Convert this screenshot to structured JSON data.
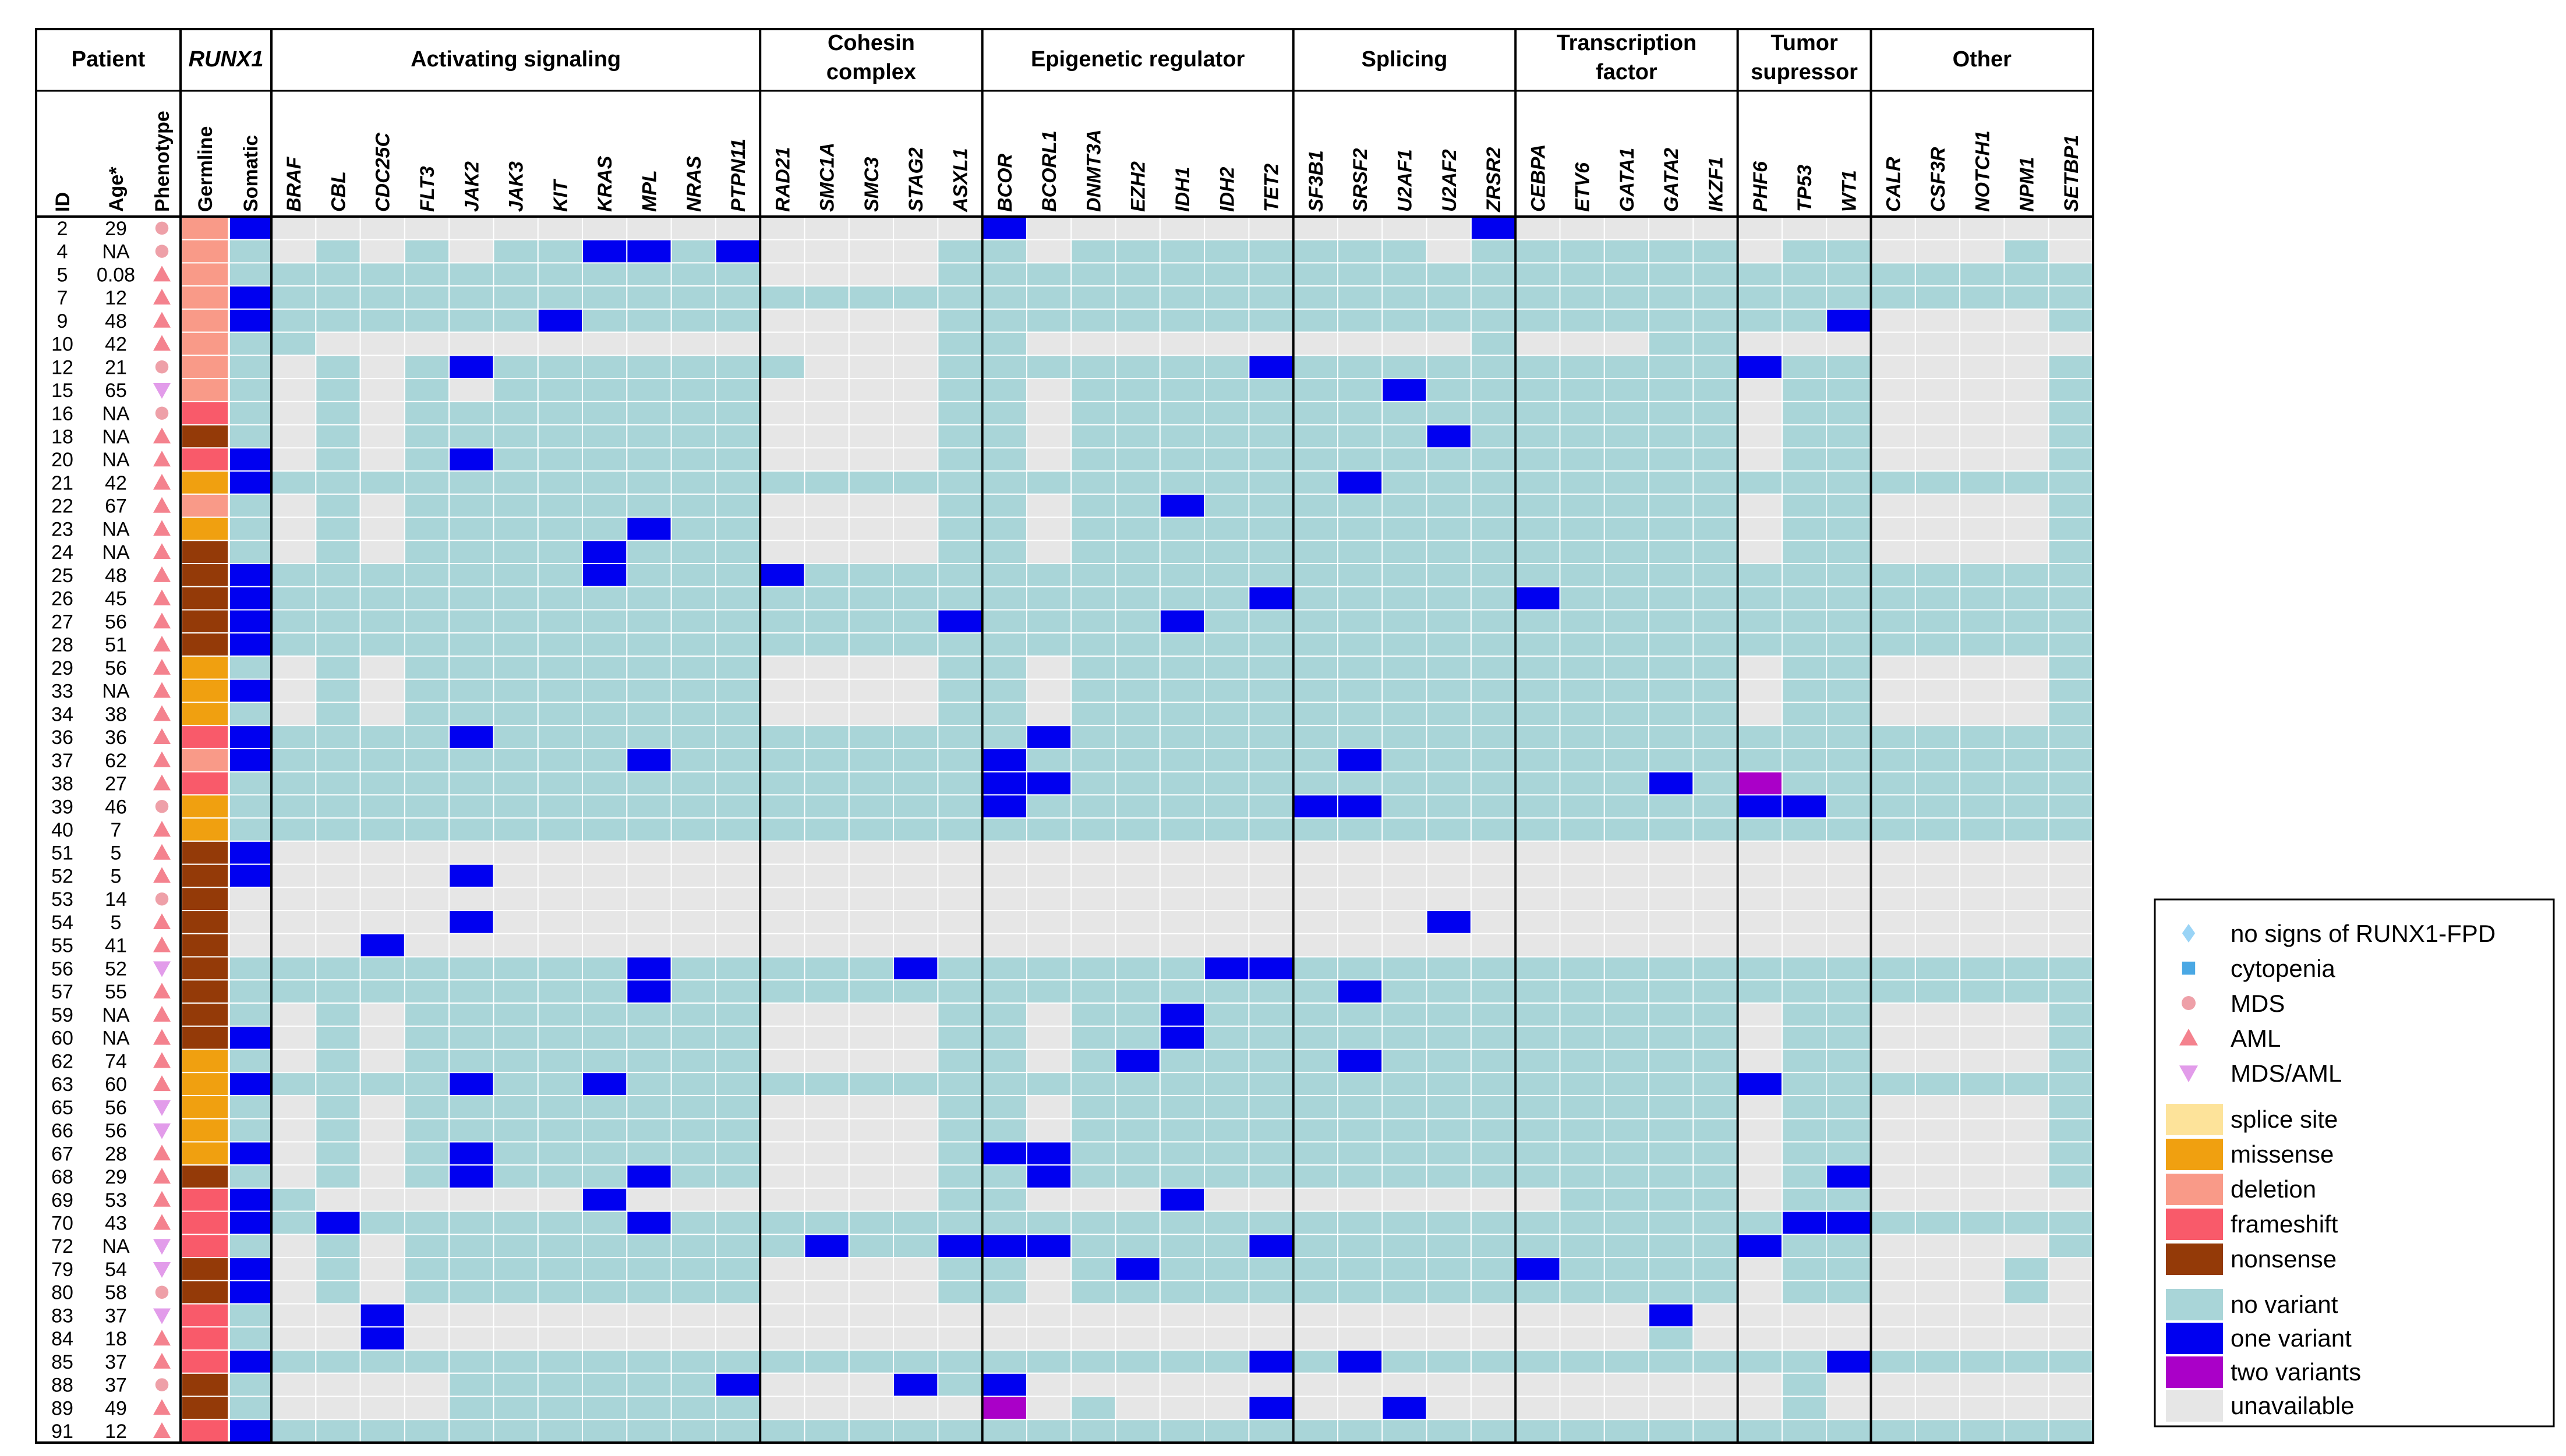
{
  "chart_data": {
    "type": "heatmap",
    "groups": [
      {
        "label": "Patient",
        "columns": [
          "ID",
          "Age*",
          "Phenotype"
        ]
      },
      {
        "label": "RUNX1",
        "italic": true,
        "columns": [
          "Germline",
          "Somatic"
        ]
      },
      {
        "label": "Activating signaling",
        "columns": [
          "BRAF",
          "CBL",
          "CDC25C",
          "FLT3",
          "JAK2",
          "JAK3",
          "KIT",
          "KRAS",
          "MPL",
          "NRAS",
          "PTPN11"
        ]
      },
      {
        "label": "Cohesin complex",
        "columns": [
          "RAD21",
          "SMC1A",
          "SMC3",
          "STAG2",
          "ASXL1"
        ]
      },
      {
        "label": "Epigenetic regulator",
        "columns": [
          "BCOR",
          "BCORL1",
          "DNMT3A",
          "EZH2",
          "IDH1",
          "IDH2",
          "TET2"
        ]
      },
      {
        "label": "Splicing",
        "columns": [
          "SF3B1",
          "SRSF2",
          "U2AF1",
          "U2AF2",
          "ZRSR2"
        ]
      },
      {
        "label": "Transcription factor",
        "columns": [
          "CEBPA",
          "ETV6",
          "GATA1",
          "GATA2",
          "IKZF1"
        ]
      },
      {
        "label": "Tumor supressor",
        "columns": [
          "PHF6",
          "TP53",
          "WT1"
        ]
      },
      {
        "label": "Other",
        "columns": [
          "CALR",
          "CSF3R",
          "NOTCH1",
          "NPM1",
          "SETBP1"
        ]
      }
    ],
    "value_legend": {
      "u": "unavailable",
      "n": "no variant",
      "o": "one variant",
      "t": "two variants"
    },
    "germline_legend": {
      "S": "splice site",
      "M": "missense",
      "D": "deletion",
      "F": "frameshift",
      "N": "nonsense"
    },
    "phenotype_legend": {
      "D": "no signs of RUNX1-FPD",
      "C": "cytopenia",
      "M": "MDS",
      "A": "AML",
      "X": "MDS/AML"
    },
    "rows": [
      {
        "id": "2",
        "age": "29",
        "ph": "M",
        "g": "D",
        "s": "o",
        "genes": "uuuuuuuuuuu|uuuuu|ouuuuuu|uuuuo|uuuuu|uuu|uuuuu"
      },
      {
        "id": "4",
        "age": "NA",
        "ph": "M",
        "g": "D",
        "s": "n",
        "genes": "unununnoono|uuuun|nunnnnn|nnnun|nnnnn|unn|uuunu"
      },
      {
        "id": "5",
        "age": "0.08",
        "ph": "A",
        "g": "D",
        "s": "n",
        "genes": "nnnnnnnnnnn|uuuun|nnnnnnn|nnnnn|nnnnn|nnn|nnnnn"
      },
      {
        "id": "7",
        "age": "12",
        "ph": "A",
        "g": "D",
        "s": "o",
        "genes": "nnnnnnnnnnn|nnnnn|nnnnnnn|nnnnn|nnnnn|nnn|nnnnn"
      },
      {
        "id": "9",
        "age": "48",
        "ph": "A",
        "g": "D",
        "s": "o",
        "genes": "nnnnnnonnnn|uuuun|nnnnnnn|nnnnn|nnnnn|nno|uuuun"
      },
      {
        "id": "10",
        "age": "42",
        "ph": "A",
        "g": "D",
        "s": "n",
        "genes": "nuuuuuuuuuu|uuuun|nuuuuuu|uuuun|uuunn|uuu|uuuuu"
      },
      {
        "id": "12",
        "age": "21",
        "ph": "M",
        "g": "D",
        "s": "n",
        "genes": "ununonnnnnn|nuuun|nnnnnno|nnnnn|nnnnn|onn|uuuun"
      },
      {
        "id": "15",
        "age": "65",
        "ph": "X",
        "g": "D",
        "s": "n",
        "genes": "unununnnnnn|uuuun|nunnnnn|nnonn|nnnnn|unn|uuuun"
      },
      {
        "id": "16",
        "age": "NA",
        "ph": "M",
        "g": "F",
        "s": "n",
        "genes": "ununnnnnnnn|uuuun|nunnnnn|nnnnn|nnnnn|unn|uuuun"
      },
      {
        "id": "18",
        "age": "NA",
        "ph": "A",
        "g": "N",
        "s": "n",
        "genes": "ununnnnnnnn|uuuun|nunnnnn|nnnon|nnnnn|unn|uuuun"
      },
      {
        "id": "20",
        "age": "NA",
        "ph": "A",
        "g": "F",
        "s": "o",
        "genes": "ununonnnnnn|uuuun|nunnnnn|nnnnn|nnnnn|unn|uuuun"
      },
      {
        "id": "21",
        "age": "42",
        "ph": "A",
        "g": "M",
        "s": "o",
        "genes": "nnnnnnnnnnn|nnnnn|nnnnnnn|nonnn|nnnnn|nnn|nnnnn"
      },
      {
        "id": "22",
        "age": "67",
        "ph": "A",
        "g": "D",
        "s": "n",
        "genes": "ununnnnnnnn|uuuun|nunnonn|nnnnn|nnnnn|unn|uuuun"
      },
      {
        "id": "23",
        "age": "NA",
        "ph": "A",
        "g": "M",
        "s": "n",
        "genes": "ununnnnnonn|uuuun|nunnnnn|nnnnn|nnnnn|unn|uuuun"
      },
      {
        "id": "24",
        "age": "NA",
        "ph": "A",
        "g": "N",
        "s": "n",
        "genes": "ununnnnonnn|uuuun|nunnnnn|nnnnn|nnnnn|unn|uuuun"
      },
      {
        "id": "25",
        "age": "48",
        "ph": "A",
        "g": "N",
        "s": "o",
        "genes": "nnnnnnnonnn|onnnn|nnnnnnn|nnnnn|nnnnn|nnn|nnnnn"
      },
      {
        "id": "26",
        "age": "45",
        "ph": "A",
        "g": "N",
        "s": "o",
        "genes": "nnnnnnnnnnn|nnnnn|nnnnnno|nnnnn|onnnn|nnn|nnnnn"
      },
      {
        "id": "27",
        "age": "56",
        "ph": "A",
        "g": "N",
        "s": "o",
        "genes": "nnnnnnnnnnn|nnnno|nnnnonn|nnnnn|nnnnn|nnn|nnnnn"
      },
      {
        "id": "28",
        "age": "51",
        "ph": "A",
        "g": "N",
        "s": "o",
        "genes": "nnnnnnnnnnn|nnnnn|nnnnnnn|nnnnn|nnnnn|nnn|nnnnn"
      },
      {
        "id": "29",
        "age": "56",
        "ph": "A",
        "g": "M",
        "s": "n",
        "genes": "ununnnnnnnn|uuuun|nunnnnn|nnnnn|nnnnn|unn|uuuun"
      },
      {
        "id": "33",
        "age": "NA",
        "ph": "A",
        "g": "M",
        "s": "o",
        "genes": "ununnnnnnnn|uuuun|nunnnnn|nnnnn|nnnnn|unn|uuuun"
      },
      {
        "id": "34",
        "age": "38",
        "ph": "A",
        "g": "M",
        "s": "n",
        "genes": "ununnnnnnnn|uuuun|nunnnnn|nnnnn|nnnnn|unn|uuuun"
      },
      {
        "id": "36",
        "age": "36",
        "ph": "A",
        "g": "F",
        "s": "o",
        "genes": "nnnnonnnnnn|nnnnn|nonnnnn|nnnnn|nnnnn|nnn|nnnnn"
      },
      {
        "id": "37",
        "age": "62",
        "ph": "A",
        "g": "D",
        "s": "o",
        "genes": "nnnnnnnnonn|nnnnn|onnnnnn|nonnn|nnnnn|nnn|nnnnn"
      },
      {
        "id": "38",
        "age": "27",
        "ph": "A",
        "g": "F",
        "s": "n",
        "genes": "nnnnnnnnnnn|nnnnn|oonnnnn|nnnnn|nnnon|tnn|nnnnn"
      },
      {
        "id": "39",
        "age": "46",
        "ph": "M",
        "g": "M",
        "s": "n",
        "genes": "nnnnnnnnnnn|nnnnn|onnnnnn|oonnn|nnnnn|oon|nnnnn"
      },
      {
        "id": "40",
        "age": "7",
        "ph": "A",
        "g": "M",
        "s": "n",
        "genes": "nnnnnnnnnnn|nnnnn|nnnnnnn|nnnnn|nnnnn|nnn|nnnnn"
      },
      {
        "id": "51",
        "age": "5",
        "ph": "A",
        "g": "N",
        "s": "o",
        "genes": "uuuuuuuuuuu|uuuuu|uuuuuuu|uuuuu|uuuuu|uuu|uuuuu"
      },
      {
        "id": "52",
        "age": "5",
        "ph": "A",
        "g": "N",
        "s": "o",
        "genes": "uuuuouuuuuu|uuuuu|uuuuuuu|uuuuu|uuuuu|uuu|uuuuu"
      },
      {
        "id": "53",
        "age": "14",
        "ph": "M",
        "g": "N",
        "s": "u",
        "genes": "uuuuuuuuuuu|uuuuu|uuuuuuu|uuuuu|uuuuu|uuu|uuuuu"
      },
      {
        "id": "54",
        "age": "5",
        "ph": "A",
        "g": "N",
        "s": "u",
        "genes": "uuuuouuuuuu|uuuuu|uuuuuuu|uuuou|uuuuu|uuu|uuuuu"
      },
      {
        "id": "55",
        "age": "41",
        "ph": "A",
        "g": "N",
        "s": "u",
        "genes": "uuouuuuuuuu|uuuuu|uuuuuuu|uuuuu|uuuuu|uuu|uuuuu"
      },
      {
        "id": "56",
        "age": "52",
        "ph": "X",
        "g": "N",
        "s": "n",
        "genes": "nnnnnnnnonn|nnnon|nnnnnoo|nnnnn|nnnnn|nnn|nnnnn"
      },
      {
        "id": "57",
        "age": "55",
        "ph": "A",
        "g": "N",
        "s": "n",
        "genes": "nnnnnnnnonn|nnnnn|nnnnnnn|nonnn|nnnnn|nnn|nnnnn"
      },
      {
        "id": "59",
        "age": "NA",
        "ph": "A",
        "g": "N",
        "s": "n",
        "genes": "ununnnnnnnn|uuuun|nunnonn|nnnnn|nnnnn|unn|uuuun"
      },
      {
        "id": "60",
        "age": "NA",
        "ph": "A",
        "g": "N",
        "s": "o",
        "genes": "ununnnnnnnn|uuuun|nunnonn|nnnnn|nnnnn|unn|uuuun"
      },
      {
        "id": "62",
        "age": "74",
        "ph": "A",
        "g": "M",
        "s": "n",
        "genes": "ununnnnnnnn|uuuun|nunonnn|nonnn|nnnnn|unn|uuuun"
      },
      {
        "id": "63",
        "age": "60",
        "ph": "A",
        "g": "M",
        "s": "o",
        "genes": "nnnnonnonnn|nnnnn|nnnnnnn|nnnnn|nnnnn|onn|nnnnn"
      },
      {
        "id": "65",
        "age": "56",
        "ph": "X",
        "g": "M",
        "s": "n",
        "genes": "ununnnnnnnn|uuuun|nunnnnn|nnnnn|nnnnn|unn|uuuun"
      },
      {
        "id": "66",
        "age": "56",
        "ph": "X",
        "g": "M",
        "s": "n",
        "genes": "ununnnnnnnn|uuuun|nunnnnn|nnnnn|nnnnn|unn|uuuun"
      },
      {
        "id": "67",
        "age": "28",
        "ph": "A",
        "g": "M",
        "s": "o",
        "genes": "ununonnnnnn|uuuun|oonnnnn|nnnnn|nnnnn|unn|uuuun"
      },
      {
        "id": "68",
        "age": "29",
        "ph": "A",
        "g": "N",
        "s": "n",
        "genes": "ununonnnonn|uuuun|nonnnnn|nnnnn|nnnnn|uno|uuuun"
      },
      {
        "id": "69",
        "age": "53",
        "ph": "A",
        "g": "F",
        "s": "o",
        "genes": "nuuuuuuouuu|uuuun|nuuuouu|uuuuu|unnnn|unn|uuuuu"
      },
      {
        "id": "70",
        "age": "43",
        "ph": "A",
        "g": "F",
        "s": "o",
        "genes": "nonnnnnnonn|nnnnn|nnnnnnn|nnnnn|nnnnn|noo|nnnnn"
      },
      {
        "id": "72",
        "age": "NA",
        "ph": "X",
        "g": "F",
        "s": "n",
        "genes": "ununnnnnnnn|nonno|oonnnno|nnnnn|nnnnn|onn|uuuun"
      },
      {
        "id": "79",
        "age": "54",
        "ph": "X",
        "g": "N",
        "s": "o",
        "genes": "ununnnnnnnn|uuuun|nunonnn|nnnnn|onnnn|unn|uuunu"
      },
      {
        "id": "80",
        "age": "58",
        "ph": "M",
        "g": "N",
        "s": "o",
        "genes": "ununnnnnnnn|uuuun|nunnnnn|nnnnn|nnnnn|unn|uuunu"
      },
      {
        "id": "83",
        "age": "37",
        "ph": "X",
        "g": "F",
        "s": "n",
        "genes": "uuouuuuuuuu|uuuuu|uuuuuuu|uuuuu|uuuou|uuu|uuuuu"
      },
      {
        "id": "84",
        "age": "18",
        "ph": "A",
        "g": "F",
        "s": "n",
        "genes": "uuouuuuuuuu|uuuuu|uuuuuuu|uuuuu|uuunu|uuu|uuuuu"
      },
      {
        "id": "85",
        "age": "37",
        "ph": "A",
        "g": "F",
        "s": "o",
        "genes": "nnnnnnnnnnn|nnnnn|nnnnnno|nonnn|nnnnn|nno|nnnnn"
      },
      {
        "id": "88",
        "age": "37",
        "ph": "M",
        "g": "N",
        "s": "n",
        "genes": "uuuunnnnnno|uuuon|ouuuuuu|uuuuu|uuuuu|unu|uuuuu"
      },
      {
        "id": "89",
        "age": "49",
        "ph": "A",
        "g": "N",
        "s": "n",
        "genes": "uuuunnnnnnn|uuuuu|tunuuuo|uuouu|uuuuu|unu|uuuuu"
      },
      {
        "id": "91",
        "age": "12",
        "ph": "A",
        "g": "F",
        "s": "o",
        "genes": "nnnnnnnnnnn|nnnnn|nnnnnnn|nnnnn|nnnnn|nnn|nnnnn"
      }
    ]
  },
  "colors": {
    "u": "#e6e6e6",
    "n": "#a9d5d8",
    "o": "#0000f0",
    "t": "#aa00c8",
    "germline": {
      "S": "#fde39a",
      "M": "#f0a010",
      "D": "#f99a88",
      "F": "#f95a6a",
      "N": "#943a08"
    },
    "phenotype": {
      "D": "#9ad4f6",
      "C": "#4aa8e4",
      "M": "#eea0a8",
      "A": "#f4828e",
      "X": "#e29cea"
    }
  }
}
